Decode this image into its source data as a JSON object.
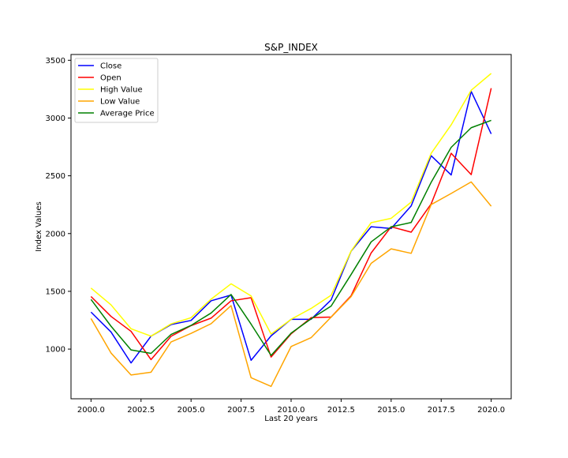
{
  "chart_data": {
    "type": "line",
    "title": "S&P_INDEX",
    "xlabel": "Last 20 years",
    "ylabel": "Index Values",
    "x": [
      2000,
      2001,
      2002,
      2003,
      2004,
      2005,
      2006,
      2007,
      2008,
      2009,
      2010,
      2011,
      2012,
      2013,
      2014,
      2015,
      2016,
      2017,
      2018,
      2019,
      2020
    ],
    "xlim": [
      1999,
      2021
    ],
    "ylim": [
      570,
      3550
    ],
    "xticks": [
      2000.0,
      2002.5,
      2005.0,
      2007.5,
      2010.0,
      2012.5,
      2015.0,
      2017.5,
      2020.0
    ],
    "xtick_labels": [
      "2000.0",
      "2002.5",
      "2005.0",
      "2007.5",
      "2010.0",
      "2012.5",
      "2015.0",
      "2017.5",
      "2020.0"
    ],
    "yticks": [
      1000,
      1500,
      2000,
      2500,
      3000,
      3500
    ],
    "ytick_labels": [
      "1000",
      "1500",
      "2000",
      "2500",
      "3000",
      "3500"
    ],
    "grid": false,
    "legend": "top-left",
    "series": [
      {
        "name": "Close",
        "color": "#0000ff",
        "values": [
          1320,
          1148,
          880,
          1112,
          1212,
          1248,
          1418,
          1468,
          903,
          1115,
          1258,
          1258,
          1426,
          1848,
          2059,
          2044,
          2239,
          2674,
          2507,
          3231,
          2863
        ]
      },
      {
        "name": "Open",
        "color": "#ff0000",
        "values": [
          1455,
          1283,
          1154,
          909,
          1111,
          1203,
          1268,
          1418,
          1445,
          931,
          1132,
          1272,
          1277,
          1462,
          1832,
          2059,
          2012,
          2257,
          2695,
          2510,
          3258
        ]
      },
      {
        "name": "High Value",
        "color": "#ffff00",
        "values": [
          1528,
          1383,
          1176,
          1112,
          1218,
          1272,
          1432,
          1565,
          1460,
          1130,
          1258,
          1352,
          1466,
          1849,
          2094,
          2132,
          2272,
          2694,
          2941,
          3240,
          3386
        ]
      },
      {
        "name": "Low Value",
        "color": "#ffa500",
        "values": [
          1265,
          966,
          776,
          800,
          1062,
          1136,
          1220,
          1376,
          752,
          677,
          1022,
          1099,
          1277,
          1454,
          1742,
          1868,
          1829,
          2251,
          2347,
          2447,
          2237
        ]
      },
      {
        "name": "Average Price",
        "color": "#008000",
        "values": [
          1430,
          1198,
          993,
          963,
          1127,
          1205,
          1312,
          1473,
          1216,
          945,
          1138,
          1262,
          1372,
          1646,
          1928,
          2058,
          2096,
          2444,
          2746,
          2916,
          2980
        ]
      }
    ]
  }
}
